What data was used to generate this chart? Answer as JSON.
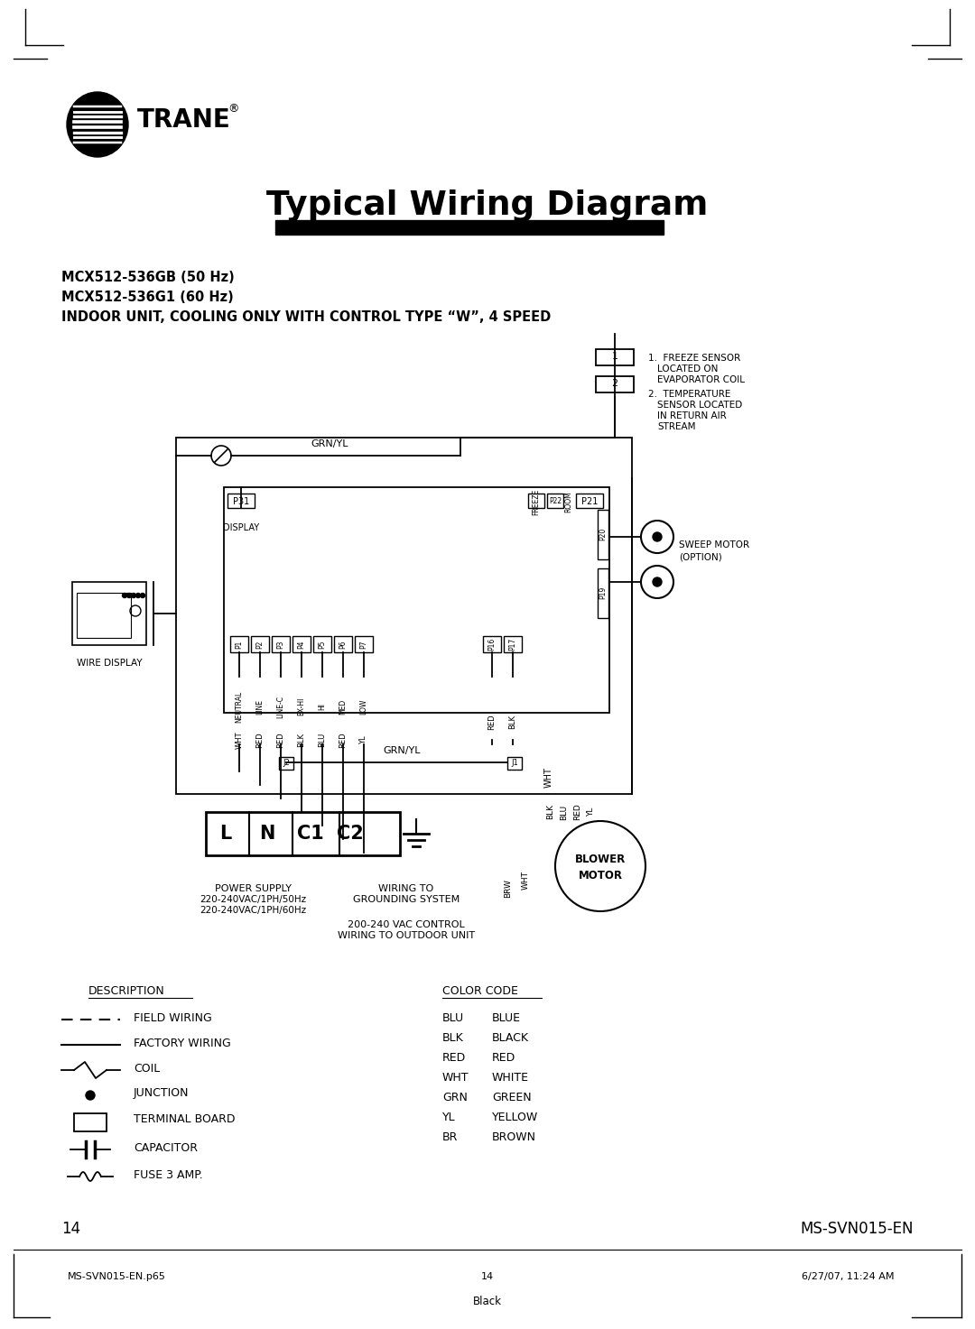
{
  "title": "Typical Wiring Diagram",
  "model1": "MCX512-536GB (50 Hz)",
  "model2": "MCX512-536G1 (60 Hz)",
  "subtitle": "INDOOR UNIT, COOLING ONLY WITH CONTROL TYPE “W”, 4 SPEED",
  "page_number": "14",
  "doc_ref": "MS-SVN015-EN",
  "footer_left": "MS-SVN015-EN.p65",
  "footer_center": "14",
  "footer_right": "6/27/07, 11:24 AM",
  "footer_bottom": "Black",
  "bg_color": "#ffffff",
  "fg_color": "#000000",
  "pin_labels": [
    "P1",
    "P2",
    "P3",
    "P4",
    "P5",
    "P6",
    "P7"
  ],
  "pin_names": [
    "NEUTRAL",
    "LINE",
    "LINE-C",
    "EX-HI",
    "HI",
    "MED",
    "LOW"
  ],
  "pin_colors": [
    "WHT",
    "RED",
    "RED",
    "BLK",
    "BLU",
    "RED",
    "YL"
  ],
  "cc_abbr": [
    "BLU",
    "BLK",
    "RED",
    "WHT",
    "GRN",
    "YL",
    "BR"
  ],
  "cc_full": [
    "BLUE",
    "BLACK",
    "RED",
    "WHITE",
    "GREEN",
    "YELLOW",
    "BROWN"
  ]
}
